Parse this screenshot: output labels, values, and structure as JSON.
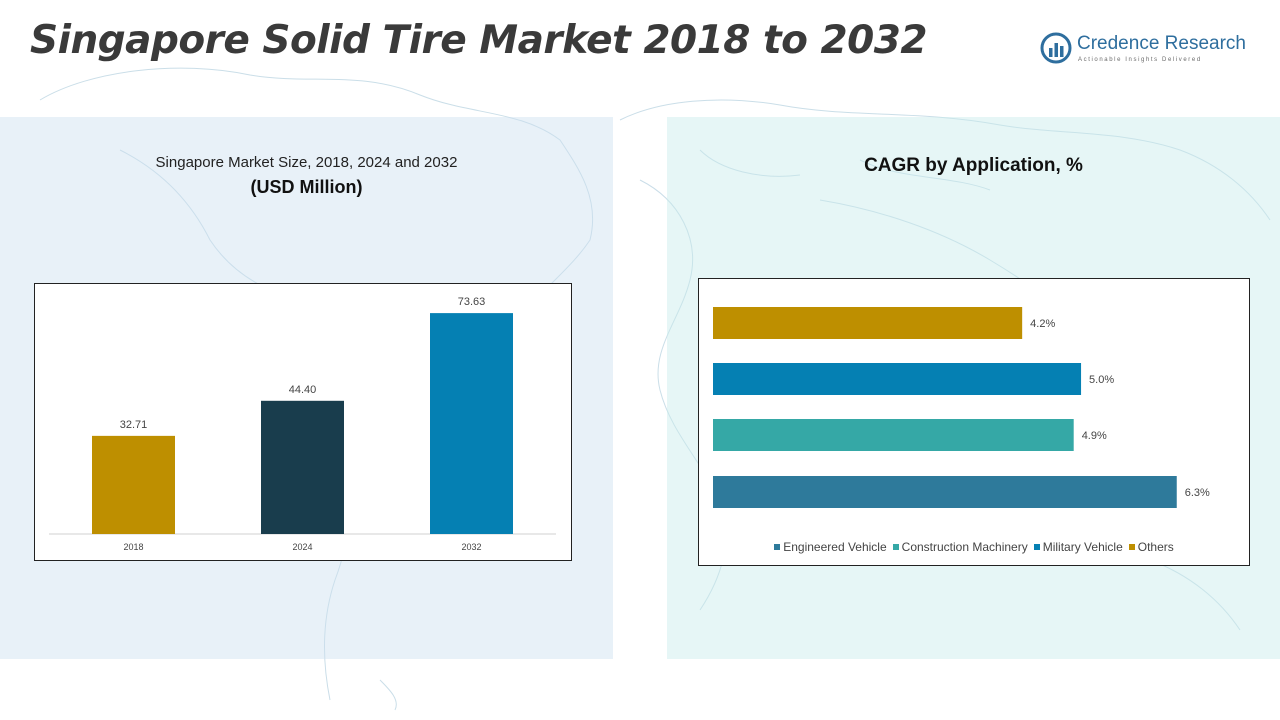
{
  "title": "Singapore Solid Tire Market 2018 to 2032",
  "logo": {
    "name": "Credence Research",
    "tagline": "Actionable Insights Delivered"
  },
  "colors": {
    "accent_gold": "#be8f00",
    "dark_navy": "#193d4d",
    "blue": "#0580b3",
    "teal": "#35a8a6",
    "steel_blue": "#2e7a9b"
  },
  "market_size_panel": {
    "heading": "Singapore Market Size, 2018, 2024 and 2032",
    "unit": "(USD Million)"
  },
  "cagr_panel": {
    "heading": "CAGR by Application, %"
  },
  "chart_data": [
    {
      "type": "bar",
      "categories": [
        "2018",
        "2024",
        "2032"
      ],
      "values": [
        32.71,
        44.4,
        73.63
      ],
      "value_labels": [
        "32.71",
        "44.40",
        "73.63"
      ],
      "colors": [
        "#be8f00",
        "#193d4d",
        "#0580b3"
      ],
      "ylim": [
        0,
        80
      ],
      "grid": false,
      "legend": "none"
    },
    {
      "type": "bar",
      "orientation": "horizontal",
      "categories": [
        "Engineered Vehicle",
        "Construction Machinery",
        "Military Vehicle",
        "Others"
      ],
      "values": [
        6.3,
        4.9,
        5.0,
        4.2
      ],
      "value_labels": [
        "6.3%",
        "4.9%",
        "5.0%",
        "4.2%"
      ],
      "colors": [
        "#2e7a9b",
        "#35a8a6",
        "#0580b3",
        "#be8f00"
      ],
      "xlim": [
        0,
        7.2
      ],
      "grid": false,
      "legend": "bottom"
    }
  ]
}
